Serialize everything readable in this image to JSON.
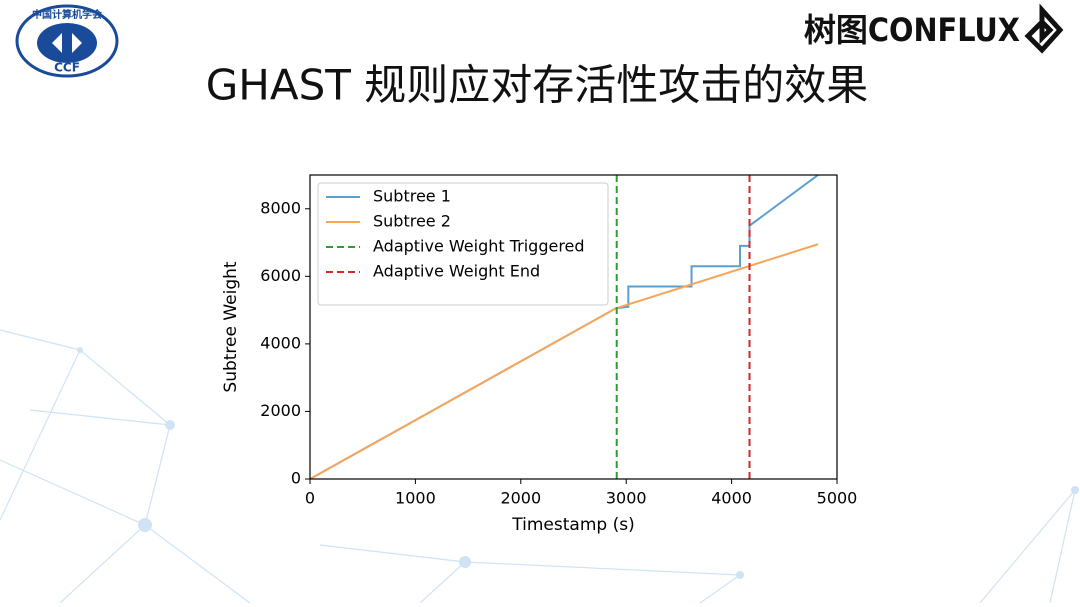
{
  "slide": {
    "title": "GHAST 规则应对存活性攻击的效果",
    "logo_left_top": "中国计算机学会",
    "logo_left_bottom": "CCF",
    "logo_right": "树图CONFLUX"
  },
  "chart_data": {
    "type": "line",
    "xlabel": "Timestamp (s)",
    "ylabel": "Subtree Weight",
    "xlim": [
      0,
      5000
    ],
    "ylim": [
      0,
      9000
    ],
    "xticks": [
      0,
      1000,
      2000,
      3000,
      4000,
      5000
    ],
    "yticks": [
      0,
      2000,
      4000,
      6000,
      8000
    ],
    "legend": "upper left",
    "series": [
      {
        "name": "Subtree 1",
        "color": "#5a9fd0",
        "x": [
          0,
          2900,
          3020,
          3020,
          3620,
          3620,
          4080,
          4080,
          4170,
          4170,
          4820
        ],
        "values": [
          0,
          5050,
          5100,
          5700,
          5700,
          6300,
          6300,
          6900,
          6900,
          7500,
          9000
        ]
      },
      {
        "name": "Subtree 2",
        "color": "#f8a55a",
        "x": [
          0,
          2900,
          4820
        ],
        "values": [
          0,
          5050,
          6950
        ]
      }
    ],
    "vlines": [
      {
        "name": "Adaptive Weight Triggered",
        "color": "#2ca02c",
        "x": 2910
      },
      {
        "name": "Adaptive Weight End",
        "color": "#d62728",
        "x": 4170
      }
    ]
  }
}
